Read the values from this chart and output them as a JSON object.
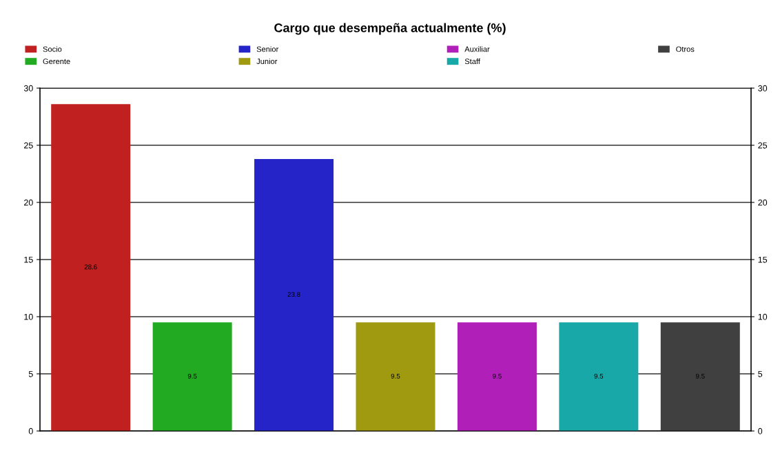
{
  "chart_data": {
    "type": "bar",
    "title": "Cargo que desempeña actualmente (%)",
    "categories": [
      null,
      null,
      null,
      null,
      null,
      null,
      null
    ],
    "series": [
      {
        "name": "Socio",
        "color": "#c0201f",
        "values": [
          28.6,
          null,
          null,
          null,
          null,
          null,
          null
        ]
      },
      {
        "name": "Gerente",
        "color": "#22aa22",
        "values": [
          null,
          9.5,
          null,
          null,
          null,
          null,
          null
        ]
      },
      {
        "name": "Senior",
        "color": "#2424c8",
        "values": [
          null,
          null,
          23.8,
          null,
          null,
          null,
          null
        ]
      },
      {
        "name": "Junior",
        "color": "#a09a10",
        "values": [
          null,
          null,
          null,
          9.5,
          null,
          null,
          null
        ]
      },
      {
        "name": "Auxiliar",
        "color": "#b020b8",
        "values": [
          null,
          null,
          null,
          null,
          9.5,
          null,
          null
        ]
      },
      {
        "name": "Staff",
        "color": "#18a8a8",
        "values": [
          null,
          null,
          null,
          null,
          null,
          9.5,
          null
        ]
      },
      {
        "name": "Otros",
        "color": "#404040",
        "values": [
          null,
          null,
          null,
          null,
          null,
          null,
          9.5
        ]
      }
    ],
    "ylim": [
      0,
      30
    ],
    "yticks": [
      0,
      5,
      10,
      15,
      20,
      25,
      30
    ],
    "y2lim": [
      0,
      30
    ],
    "y2ticks": [
      0,
      5,
      10,
      15,
      20,
      25,
      30
    ],
    "grid": "y",
    "legend": "top",
    "data_labels": true
  }
}
